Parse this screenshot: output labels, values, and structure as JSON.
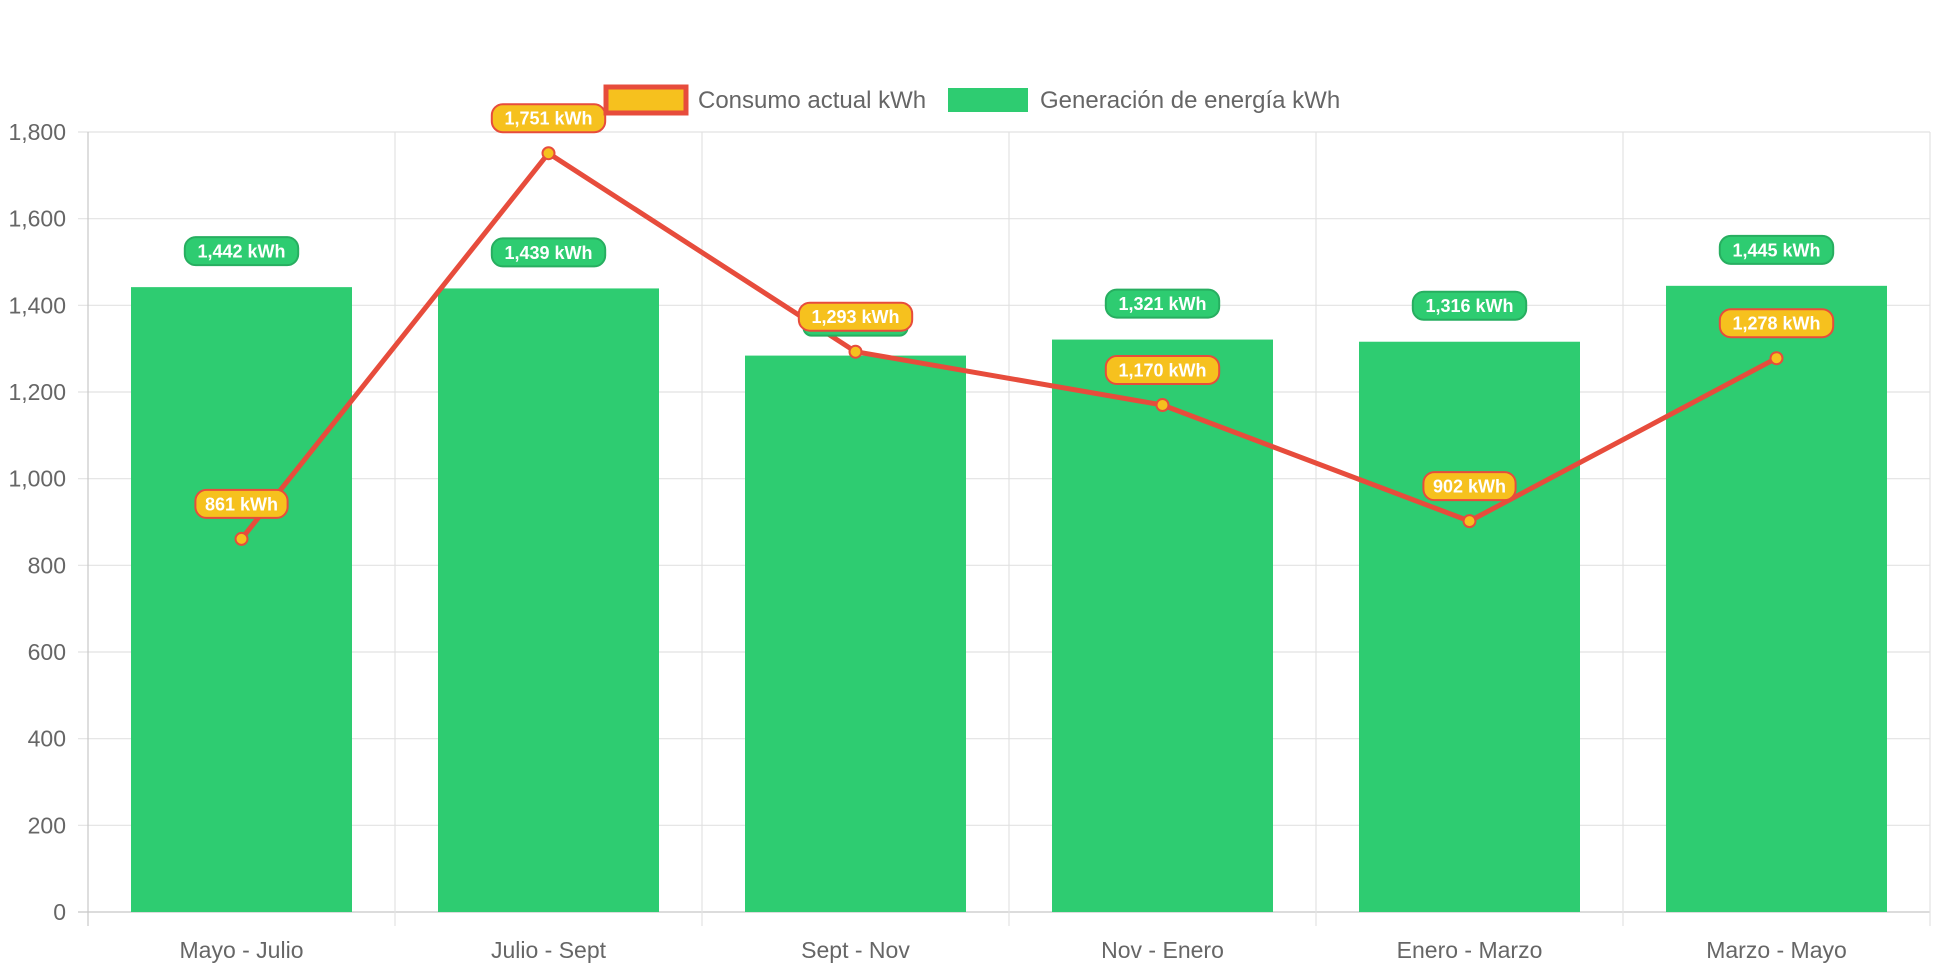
{
  "chart_data": {
    "type": "bar",
    "categories": [
      "Mayo - Julio",
      "Julio - Sept",
      "Sept - Nov",
      "Nov - Enero",
      "Enero - Marzo",
      "Marzo - Mayo"
    ],
    "series": [
      {
        "name": "Consumo actual kWh",
        "type": "line",
        "values": [
          861,
          1751,
          1293,
          1170,
          902,
          1278
        ],
        "labels": [
          "861 kWh",
          "1,751 kWh",
          "1,293 kWh",
          "1,170 kWh",
          "902 kWh",
          "1,278 kWh"
        ],
        "line_color": "#e74c3c",
        "fill_color": "#f6c11e"
      },
      {
        "name": "Generación de energía kWh",
        "type": "bar",
        "values": [
          1442,
          1439,
          1284,
          1321,
          1316,
          1445
        ],
        "labels": [
          "1,442 kWh",
          "1,439 kWh",
          "",
          "1,321 kWh",
          "1,316 kWh",
          "1,445 kWh"
        ],
        "color": "#2ecc71"
      }
    ],
    "y_ticks": [
      "0",
      "200",
      "400",
      "600",
      "800",
      "1,000",
      "1,200",
      "1,400",
      "1,600",
      "1,800"
    ],
    "ylim": [
      0,
      1800
    ],
    "grid": true,
    "legend": "top-center"
  }
}
